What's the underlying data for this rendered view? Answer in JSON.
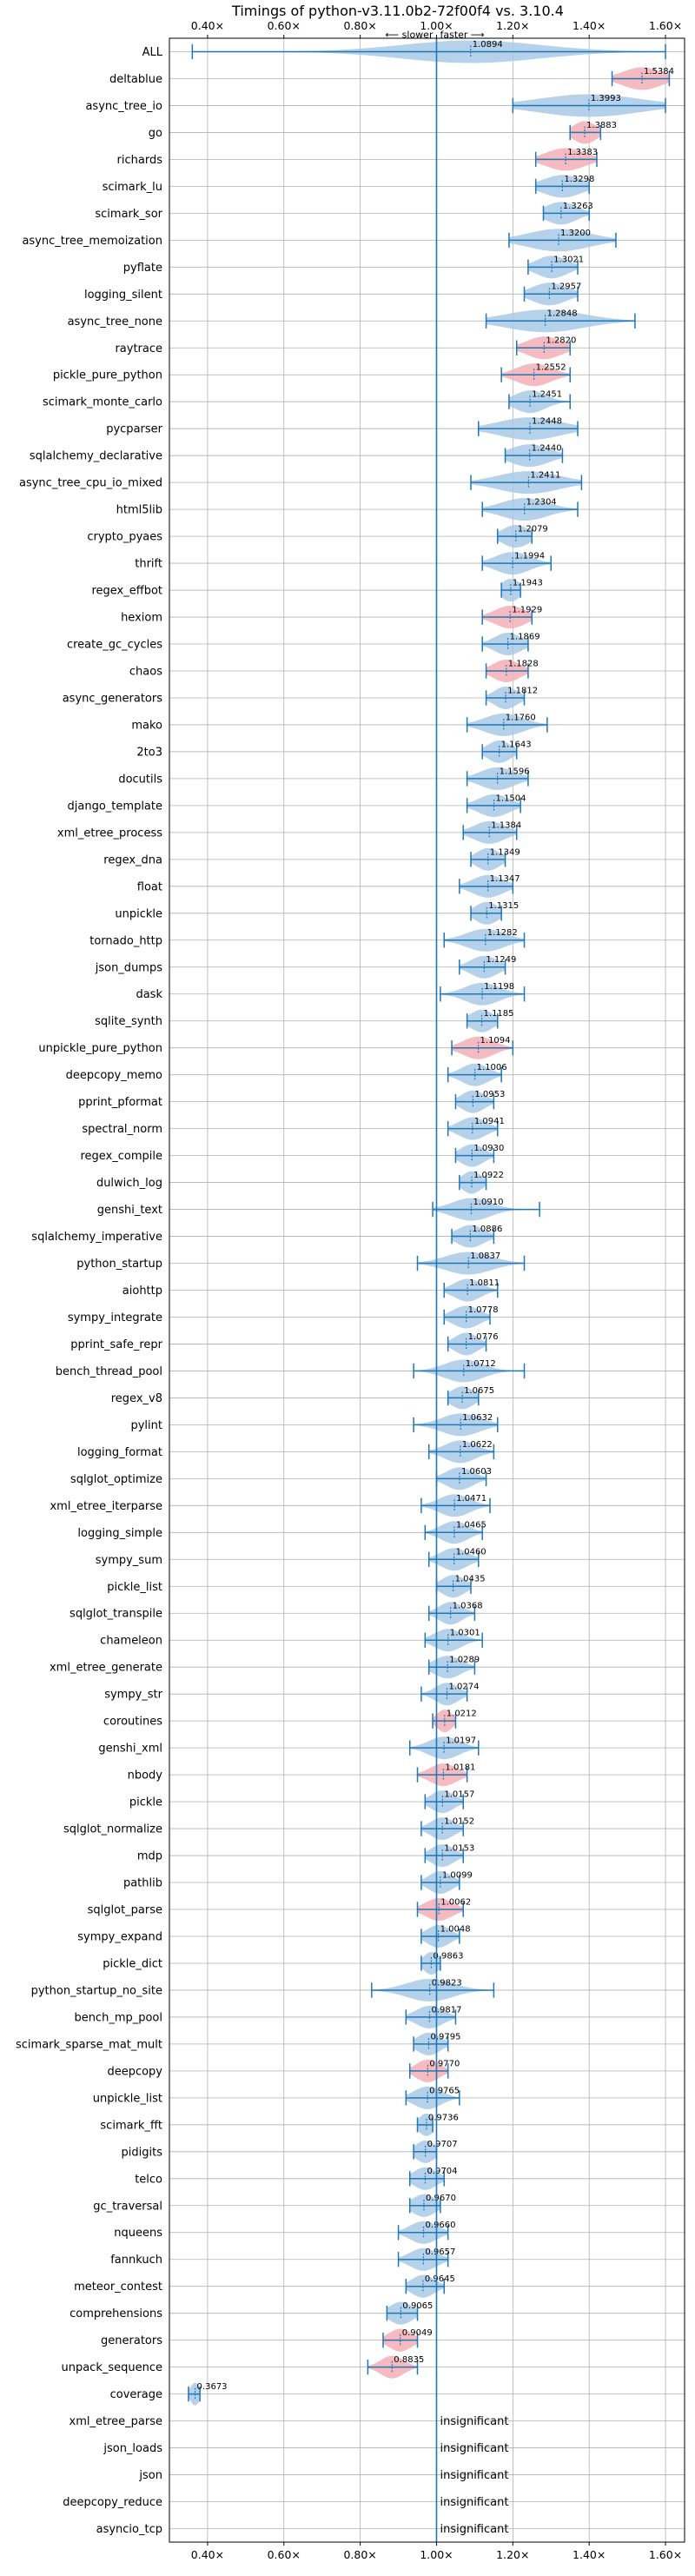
{
  "title": "Timings of python-v3.11.0b2-72f00f4 vs. 3.10.4",
  "direction_labels": {
    "slower": "⟵ slower",
    "faster": "faster ⟶"
  },
  "insignificant_text": "insignificant",
  "colors": {
    "faster": "#a9c9e6",
    "slower": "#f4aeb6",
    "errorbar": "#1f77b4",
    "refline": "#1f77b4",
    "grid": "#b0b0b0"
  },
  "chart_data": {
    "type": "violin",
    "xlim": [
      0.3,
      1.65
    ],
    "xticks": [
      0.4,
      0.6,
      0.8,
      1.0,
      1.2,
      1.4,
      1.6
    ],
    "xtick_labels": [
      "0.40×",
      "0.60×",
      "0.80×",
      "1.00×",
      "1.20×",
      "1.40×",
      "1.60×"
    ],
    "reference_x": 1.0,
    "grid": true,
    "benchmarks": [
      {
        "name": "ALL",
        "value": 1.0894,
        "label": "1.0894",
        "min": 0.36,
        "max": 1.6,
        "spread": 0.18,
        "slower": false
      },
      {
        "name": "deltablue",
        "value": 1.5384,
        "label": "1.5384",
        "min": 1.46,
        "max": 1.61,
        "spread": 0.05,
        "slower": true
      },
      {
        "name": "async_tree_io",
        "value": 1.3993,
        "label": "1.3993",
        "min": 1.2,
        "max": 1.6,
        "spread": 0.13,
        "slower": false
      },
      {
        "name": "go",
        "value": 1.3883,
        "label": "1.3883",
        "min": 1.35,
        "max": 1.43,
        "spread": 0.03,
        "slower": true
      },
      {
        "name": "richards",
        "value": 1.3383,
        "label": "1.3383",
        "min": 1.26,
        "max": 1.42,
        "spread": 0.05,
        "slower": true
      },
      {
        "name": "scimark_lu",
        "value": 1.3298,
        "label": "1.3298",
        "min": 1.26,
        "max": 1.4,
        "spread": 0.05,
        "slower": false
      },
      {
        "name": "scimark_sor",
        "value": 1.3263,
        "label": "1.3263",
        "min": 1.28,
        "max": 1.4,
        "spread": 0.04,
        "slower": false
      },
      {
        "name": "async_tree_memoization",
        "value": 1.32,
        "label": "1.3200",
        "min": 1.19,
        "max": 1.47,
        "spread": 0.08,
        "slower": false
      },
      {
        "name": "pyflate",
        "value": 1.3021,
        "label": "1.3021",
        "min": 1.24,
        "max": 1.37,
        "spread": 0.04,
        "slower": false
      },
      {
        "name": "logging_silent",
        "value": 1.2957,
        "label": "1.2957",
        "min": 1.23,
        "max": 1.37,
        "spread": 0.045,
        "slower": false
      },
      {
        "name": "async_tree_none",
        "value": 1.2848,
        "label": "1.2848",
        "min": 1.13,
        "max": 1.52,
        "spread": 0.1,
        "slower": false
      },
      {
        "name": "raytrace",
        "value": 1.282,
        "label": "1.2820",
        "min": 1.21,
        "max": 1.35,
        "spread": 0.045,
        "slower": true
      },
      {
        "name": "pickle_pure_python",
        "value": 1.2552,
        "label": "1.2552",
        "min": 1.17,
        "max": 1.35,
        "spread": 0.045,
        "slower": true
      },
      {
        "name": "scimark_monte_carlo",
        "value": 1.2451,
        "label": "1.2451",
        "min": 1.19,
        "max": 1.35,
        "spread": 0.04,
        "slower": false
      },
      {
        "name": "pycparser",
        "value": 1.2448,
        "label": "1.2448",
        "min": 1.11,
        "max": 1.37,
        "spread": 0.08,
        "slower": false
      },
      {
        "name": "sqlalchemy_declarative",
        "value": 1.244,
        "label": "1.2440",
        "min": 1.18,
        "max": 1.33,
        "spread": 0.05,
        "slower": false
      },
      {
        "name": "async_tree_cpu_io_mixed",
        "value": 1.2411,
        "label": "1.2411",
        "min": 1.09,
        "max": 1.38,
        "spread": 0.08,
        "slower": false
      },
      {
        "name": "html5lib",
        "value": 1.2304,
        "label": "1.2304",
        "min": 1.12,
        "max": 1.37,
        "spread": 0.06,
        "slower": false
      },
      {
        "name": "crypto_pyaes",
        "value": 1.2079,
        "label": "1.2079",
        "min": 1.16,
        "max": 1.25,
        "spread": 0.035,
        "slower": false
      },
      {
        "name": "thrift",
        "value": 1.1994,
        "label": "1.1994",
        "min": 1.12,
        "max": 1.3,
        "spread": 0.045,
        "slower": false
      },
      {
        "name": "regex_effbot",
        "value": 1.1943,
        "label": "1.1943",
        "min": 1.17,
        "max": 1.22,
        "spread": 0.025,
        "slower": false
      },
      {
        "name": "hexiom",
        "value": 1.1929,
        "label": "1.1929",
        "min": 1.12,
        "max": 1.25,
        "spread": 0.04,
        "slower": true
      },
      {
        "name": "create_gc_cycles",
        "value": 1.1869,
        "label": "1.1869",
        "min": 1.12,
        "max": 1.24,
        "spread": 0.035,
        "slower": false
      },
      {
        "name": "chaos",
        "value": 1.1828,
        "label": "1.1828",
        "min": 1.13,
        "max": 1.24,
        "spread": 0.035,
        "slower": true
      },
      {
        "name": "async_generators",
        "value": 1.1812,
        "label": "1.1812",
        "min": 1.13,
        "max": 1.23,
        "spread": 0.03,
        "slower": false
      },
      {
        "name": "mako",
        "value": 1.176,
        "label": "1.1760",
        "min": 1.08,
        "max": 1.29,
        "spread": 0.05,
        "slower": false
      },
      {
        "name": "2to3",
        "value": 1.1643,
        "label": "1.1643",
        "min": 1.12,
        "max": 1.21,
        "spread": 0.03,
        "slower": false
      },
      {
        "name": "docutils",
        "value": 1.1596,
        "label": "1.1596",
        "min": 1.08,
        "max": 1.24,
        "spread": 0.045,
        "slower": false
      },
      {
        "name": "django_template",
        "value": 1.1504,
        "label": "1.1504",
        "min": 1.08,
        "max": 1.22,
        "spread": 0.04,
        "slower": false
      },
      {
        "name": "xml_etree_process",
        "value": 1.1384,
        "label": "1.1384",
        "min": 1.07,
        "max": 1.21,
        "spread": 0.04,
        "slower": false
      },
      {
        "name": "regex_dna",
        "value": 1.1349,
        "label": "1.1349",
        "min": 1.09,
        "max": 1.18,
        "spread": 0.03,
        "slower": false
      },
      {
        "name": "float",
        "value": 1.1347,
        "label": "1.1347",
        "min": 1.06,
        "max": 1.2,
        "spread": 0.04,
        "slower": false
      },
      {
        "name": "unpickle",
        "value": 1.1315,
        "label": "1.1315",
        "min": 1.09,
        "max": 1.17,
        "spread": 0.03,
        "slower": false
      },
      {
        "name": "tornado_http",
        "value": 1.1282,
        "label": "1.1282",
        "min": 1.02,
        "max": 1.23,
        "spread": 0.05,
        "slower": false
      },
      {
        "name": "json_dumps",
        "value": 1.1249,
        "label": "1.1249",
        "min": 1.06,
        "max": 1.18,
        "spread": 0.035,
        "slower": false
      },
      {
        "name": "dask",
        "value": 1.1198,
        "label": "1.1198",
        "min": 1.01,
        "max": 1.23,
        "spread": 0.045,
        "slower": false
      },
      {
        "name": "sqlite_synth",
        "value": 1.1185,
        "label": "1.1185",
        "min": 1.08,
        "max": 1.16,
        "spread": 0.03,
        "slower": false
      },
      {
        "name": "unpickle_pure_python",
        "value": 1.1094,
        "label": "1.1094",
        "min": 1.04,
        "max": 1.2,
        "spread": 0.04,
        "slower": true
      },
      {
        "name": "deepcopy_memo",
        "value": 1.1006,
        "label": "1.1006",
        "min": 1.03,
        "max": 1.17,
        "spread": 0.035,
        "slower": false
      },
      {
        "name": "pprint_pformat",
        "value": 1.0953,
        "label": "1.0953",
        "min": 1.05,
        "max": 1.15,
        "spread": 0.03,
        "slower": false
      },
      {
        "name": "spectral_norm",
        "value": 1.0941,
        "label": "1.0941",
        "min": 1.03,
        "max": 1.16,
        "spread": 0.035,
        "slower": false
      },
      {
        "name": "regex_compile",
        "value": 1.093,
        "label": "1.0930",
        "min": 1.05,
        "max": 1.15,
        "spread": 0.03,
        "slower": false
      },
      {
        "name": "dulwich_log",
        "value": 1.0922,
        "label": "1.0922",
        "min": 1.06,
        "max": 1.13,
        "spread": 0.025,
        "slower": false
      },
      {
        "name": "genshi_text",
        "value": 1.091,
        "label": "1.0910",
        "min": 0.99,
        "max": 1.27,
        "spread": 0.05,
        "slower": false
      },
      {
        "name": "sqlalchemy_imperative",
        "value": 1.0886,
        "label": "1.0886",
        "min": 1.04,
        "max": 1.15,
        "spread": 0.035,
        "slower": false
      },
      {
        "name": "python_startup",
        "value": 1.0837,
        "label": "1.0837",
        "min": 0.95,
        "max": 1.23,
        "spread": 0.06,
        "slower": false
      },
      {
        "name": "aiohttp",
        "value": 1.0811,
        "label": "1.0811",
        "min": 1.02,
        "max": 1.16,
        "spread": 0.035,
        "slower": false
      },
      {
        "name": "sympy_integrate",
        "value": 1.0778,
        "label": "1.0778",
        "min": 1.02,
        "max": 1.14,
        "spread": 0.035,
        "slower": false
      },
      {
        "name": "pprint_safe_repr",
        "value": 1.0776,
        "label": "1.0776",
        "min": 1.03,
        "max": 1.13,
        "spread": 0.03,
        "slower": false
      },
      {
        "name": "bench_thread_pool",
        "value": 1.0712,
        "label": "1.0712",
        "min": 0.94,
        "max": 1.23,
        "spread": 0.05,
        "slower": false
      },
      {
        "name": "regex_v8",
        "value": 1.0675,
        "label": "1.0675",
        "min": 1.03,
        "max": 1.11,
        "spread": 0.03,
        "slower": false
      },
      {
        "name": "pylint",
        "value": 1.0632,
        "label": "1.0632",
        "min": 0.94,
        "max": 1.16,
        "spread": 0.05,
        "slower": false
      },
      {
        "name": "logging_format",
        "value": 1.0622,
        "label": "1.0622",
        "min": 0.98,
        "max": 1.15,
        "spread": 0.04,
        "slower": false
      },
      {
        "name": "sqlglot_optimize",
        "value": 1.0603,
        "label": "1.0603",
        "min": 1.0,
        "max": 1.13,
        "spread": 0.035,
        "slower": false
      },
      {
        "name": "xml_etree_iterparse",
        "value": 1.0471,
        "label": "1.0471",
        "min": 0.96,
        "max": 1.14,
        "spread": 0.04,
        "slower": false
      },
      {
        "name": "logging_simple",
        "value": 1.0465,
        "label": "1.0465",
        "min": 0.97,
        "max": 1.12,
        "spread": 0.035,
        "slower": false
      },
      {
        "name": "sympy_sum",
        "value": 1.046,
        "label": "1.0460",
        "min": 0.98,
        "max": 1.11,
        "spread": 0.035,
        "slower": false
      },
      {
        "name": "pickle_list",
        "value": 1.0435,
        "label": "1.0435",
        "min": 1.0,
        "max": 1.09,
        "spread": 0.03,
        "slower": false
      },
      {
        "name": "sqlglot_transpile",
        "value": 1.0368,
        "label": "1.0368",
        "min": 0.98,
        "max": 1.1,
        "spread": 0.03,
        "slower": false
      },
      {
        "name": "chameleon",
        "value": 1.0301,
        "label": "1.0301",
        "min": 0.97,
        "max": 1.12,
        "spread": 0.035,
        "slower": false
      },
      {
        "name": "xml_etree_generate",
        "value": 1.0289,
        "label": "1.0289",
        "min": 0.98,
        "max": 1.1,
        "spread": 0.035,
        "slower": false
      },
      {
        "name": "sympy_str",
        "value": 1.0274,
        "label": "1.0274",
        "min": 0.96,
        "max": 1.08,
        "spread": 0.03,
        "slower": false
      },
      {
        "name": "coroutines",
        "value": 1.0212,
        "label": "1.0212",
        "min": 0.99,
        "max": 1.05,
        "spread": 0.02,
        "slower": true
      },
      {
        "name": "genshi_xml",
        "value": 1.0197,
        "label": "1.0197",
        "min": 0.93,
        "max": 1.11,
        "spread": 0.04,
        "slower": false
      },
      {
        "name": "nbody",
        "value": 1.0181,
        "label": "1.0181",
        "min": 0.95,
        "max": 1.08,
        "spread": 0.035,
        "slower": true
      },
      {
        "name": "pickle",
        "value": 1.0157,
        "label": "1.0157",
        "min": 0.97,
        "max": 1.07,
        "spread": 0.03,
        "slower": false
      },
      {
        "name": "sqlglot_normalize",
        "value": 1.0152,
        "label": "1.0152",
        "min": 0.96,
        "max": 1.07,
        "spread": 0.03,
        "slower": false
      },
      {
        "name": "mdp",
        "value": 1.0153,
        "label": "1.0153",
        "min": 0.97,
        "max": 1.07,
        "spread": 0.03,
        "slower": false
      },
      {
        "name": "pathlib",
        "value": 1.0099,
        "label": "1.0099",
        "min": 0.96,
        "max": 1.06,
        "spread": 0.03,
        "slower": false
      },
      {
        "name": "sqlglot_parse",
        "value": 1.0062,
        "label": "1.0062",
        "min": 0.95,
        "max": 1.07,
        "spread": 0.035,
        "slower": true
      },
      {
        "name": "sympy_expand",
        "value": 1.0048,
        "label": "1.0048",
        "min": 0.96,
        "max": 1.06,
        "spread": 0.03,
        "slower": false
      },
      {
        "name": "pickle_dict",
        "value": 0.9863,
        "label": "0.9863",
        "min": 0.96,
        "max": 1.01,
        "spread": 0.02,
        "slower": false
      },
      {
        "name": "python_startup_no_site",
        "value": 0.9823,
        "label": "0.9823",
        "min": 0.83,
        "max": 1.15,
        "spread": 0.06,
        "slower": false
      },
      {
        "name": "bench_mp_pool",
        "value": 0.9817,
        "label": "0.9817",
        "min": 0.92,
        "max": 1.05,
        "spread": 0.035,
        "slower": false
      },
      {
        "name": "scimark_sparse_mat_mult",
        "value": 0.9795,
        "label": "0.9795",
        "min": 0.94,
        "max": 1.03,
        "spread": 0.03,
        "slower": false
      },
      {
        "name": "deepcopy",
        "value": 0.977,
        "label": "0.9770",
        "min": 0.93,
        "max": 1.03,
        "spread": 0.03,
        "slower": true
      },
      {
        "name": "unpickle_list",
        "value": 0.9765,
        "label": "0.9765",
        "min": 0.92,
        "max": 1.06,
        "spread": 0.035,
        "slower": false
      },
      {
        "name": "scimark_fft",
        "value": 0.9736,
        "label": "0.9736",
        "min": 0.95,
        "max": 0.99,
        "spread": 0.02,
        "slower": false
      },
      {
        "name": "pidigits",
        "value": 0.9707,
        "label": "0.9707",
        "min": 0.94,
        "max": 1.0,
        "spread": 0.025,
        "slower": false
      },
      {
        "name": "telco",
        "value": 0.9704,
        "label": "0.9704",
        "min": 0.93,
        "max": 1.02,
        "spread": 0.03,
        "slower": false
      },
      {
        "name": "gc_traversal",
        "value": 0.967,
        "label": "0.9670",
        "min": 0.93,
        "max": 1.01,
        "spread": 0.03,
        "slower": false
      },
      {
        "name": "nqueens",
        "value": 0.966,
        "label": "0.9660",
        "min": 0.9,
        "max": 1.03,
        "spread": 0.035,
        "slower": false
      },
      {
        "name": "fannkuch",
        "value": 0.9657,
        "label": "0.9657",
        "min": 0.9,
        "max": 1.03,
        "spread": 0.035,
        "slower": false
      },
      {
        "name": "meteor_contest",
        "value": 0.9645,
        "label": "0.9645",
        "min": 0.92,
        "max": 1.02,
        "spread": 0.03,
        "slower": false
      },
      {
        "name": "comprehensions",
        "value": 0.9065,
        "label": "0.9065",
        "min": 0.87,
        "max": 0.95,
        "spread": 0.03,
        "slower": false
      },
      {
        "name": "generators",
        "value": 0.9049,
        "label": "0.9049",
        "min": 0.86,
        "max": 0.95,
        "spread": 0.03,
        "slower": true
      },
      {
        "name": "unpack_sequence",
        "value": 0.8835,
        "label": "0.8835",
        "min": 0.82,
        "max": 0.95,
        "spread": 0.03,
        "slower": true
      },
      {
        "name": "coverage",
        "value": 0.3673,
        "label": "0.3673",
        "min": 0.35,
        "max": 0.38,
        "spread": 0.012,
        "slower": false
      },
      {
        "name": "xml_etree_parse",
        "value": null,
        "label": "",
        "insignificant": true
      },
      {
        "name": "json_loads",
        "value": null,
        "label": "",
        "insignificant": true
      },
      {
        "name": "json",
        "value": null,
        "label": "",
        "insignificant": true
      },
      {
        "name": "deepcopy_reduce",
        "value": null,
        "label": "",
        "insignificant": true
      },
      {
        "name": "asyncio_tcp",
        "value": null,
        "label": "",
        "insignificant": true
      }
    ]
  }
}
